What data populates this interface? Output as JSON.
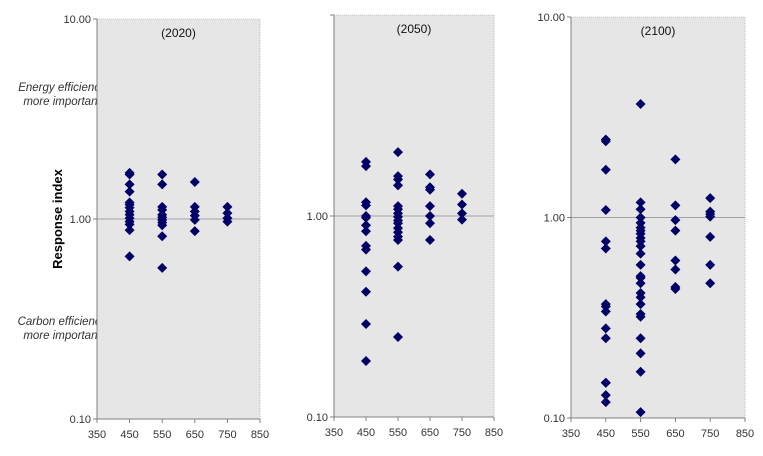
{
  "chart_data": {
    "ylabel": "Response index",
    "annotations": {
      "upper": [
        "Energy efficiency",
        "more important"
      ],
      "lower": [
        "Carbon efficiency",
        "more important"
      ]
    },
    "marker_color": "#000066",
    "plot_background": "#e6e6e6",
    "panels": [
      {
        "type": "scatter",
        "title": "(2020)",
        "xlim": [
          350,
          850
        ],
        "xticks": [
          350,
          450,
          550,
          650,
          750,
          850
        ],
        "ylim": [
          0.1,
          10
        ],
        "yscale": "log",
        "yticks": [
          "0.10",
          "1.00",
          "10.00"
        ],
        "reference_line": 1.0,
        "points": {
          "450": [
            1.7,
            1.67,
            1.49,
            1.37,
            1.21,
            1.18,
            1.14,
            1.09,
            1.05,
            1.01,
            0.97,
            0.94,
            0.88,
            0.65
          ],
          "550": [
            1.67,
            1.49,
            1.15,
            1.11,
            1.05,
            1.02,
            0.99,
            0.96,
            0.93,
            0.82,
            0.57
          ],
          "650": [
            1.53,
            1.15,
            1.09,
            1.04,
            0.99,
            0.87
          ],
          "750": [
            1.15,
            1.07,
            1.01,
            0.97
          ]
        }
      },
      {
        "type": "scatter",
        "title": "(2050)",
        "xlim": [
          350,
          850
        ],
        "xticks": [
          350,
          450,
          550,
          650,
          750,
          850
        ],
        "ylim": [
          0.1,
          10
        ],
        "yscale": "log",
        "yticks": [
          "0.10",
          "1.00"
        ],
        "reference_line": 1.0,
        "points": {
          "450": [
            1.86,
            1.77,
            1.17,
            1.13,
            1.0,
            0.98,
            0.9,
            0.84,
            0.71,
            0.68,
            0.53,
            0.42,
            0.29,
            0.19
          ],
          "550": [
            2.08,
            1.58,
            1.52,
            1.42,
            1.12,
            1.08,
            1.03,
            0.99,
            0.95,
            0.92,
            0.87,
            0.83,
            0.79,
            0.76,
            0.56,
            0.25
          ],
          "650": [
            1.61,
            1.39,
            1.35,
            1.12,
            1.0,
            0.92,
            0.76
          ],
          "750": [
            1.29,
            1.14,
            1.03,
            0.96
          ]
        }
      },
      {
        "type": "scatter",
        "title": "(2100)",
        "xlim": [
          350,
          850
        ],
        "xticks": [
          350,
          450,
          550,
          650,
          750,
          850
        ],
        "ylim": [
          0.1,
          10
        ],
        "yscale": "log",
        "yticks": [
          "0.10",
          "1.00",
          "10.00"
        ],
        "reference_line": 1.0,
        "points": {
          "450": [
            2.45,
            2.4,
            1.73,
            1.09,
            0.76,
            0.7,
            0.37,
            0.36,
            0.34,
            0.28,
            0.25,
            0.15,
            0.15,
            0.13,
            0.12
          ],
          "550": [
            3.68,
            1.19,
            1.1,
            1.0,
            0.94,
            0.89,
            0.86,
            0.83,
            0.79,
            0.76,
            0.72,
            0.66,
            0.58,
            0.51,
            0.5,
            0.47,
            0.42,
            0.4,
            0.37,
            0.33,
            0.32,
            0.25,
            0.21,
            0.17,
            0.107
          ],
          "650": [
            1.95,
            1.15,
            0.97,
            0.86,
            0.61,
            0.55,
            0.45,
            0.44
          ],
          "750": [
            1.25,
            1.07,
            1.04,
            1.01,
            0.8,
            0.58,
            0.47
          ]
        }
      }
    ]
  }
}
